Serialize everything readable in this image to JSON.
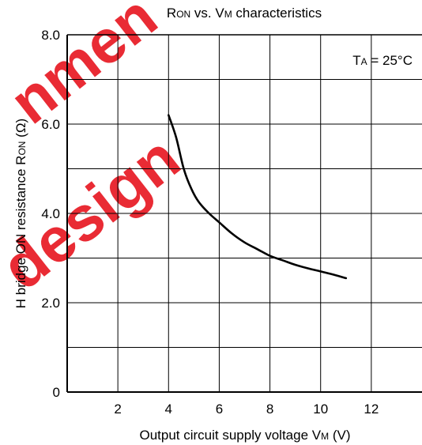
{
  "chart_data": {
    "type": "line",
    "title": {
      "main1": "R",
      "sub1": "ON",
      "main2": " vs. V",
      "sub2": "M",
      "main3": " characteristics"
    },
    "xlabel": {
      "text": "Output circuit supply voltage  V",
      "sub": "M",
      "unit": "  (V)"
    },
    "ylabel": {
      "text": "H bridge ON resistance  R",
      "sub": "ON",
      "unit": "  (Ω)"
    },
    "annotation": {
      "main1": "T",
      "sub": "A",
      "main2": " = 25°C"
    },
    "xlim": [
      0,
      14
    ],
    "ylim": [
      0,
      8
    ],
    "x_ticks": [
      "2",
      "4",
      "6",
      "8",
      "10",
      "12"
    ],
    "x_tick_values": [
      2,
      4,
      6,
      8,
      10,
      12
    ],
    "y_ticks": [
      "0",
      "2.0",
      "4.0",
      "6.0",
      "8.0"
    ],
    "y_tick_values": [
      0,
      2,
      4,
      6,
      8
    ],
    "grid": true,
    "series": [
      {
        "color": "#000000",
        "x": [
          4.0,
          4.3,
          4.6,
          4.9,
          5.2,
          5.6,
          6.0,
          6.5,
          7.0,
          7.5,
          8.0,
          8.5,
          9.0,
          9.5,
          10.0,
          10.5,
          11.0
        ],
        "y": [
          6.2,
          5.7,
          5.0,
          4.55,
          4.25,
          4.0,
          3.8,
          3.55,
          3.35,
          3.2,
          3.05,
          2.95,
          2.85,
          2.77,
          2.7,
          2.63,
          2.55
        ]
      }
    ]
  },
  "watermark": {
    "text1": "nmen",
    "text2": "design",
    "color": "#e8202a"
  }
}
